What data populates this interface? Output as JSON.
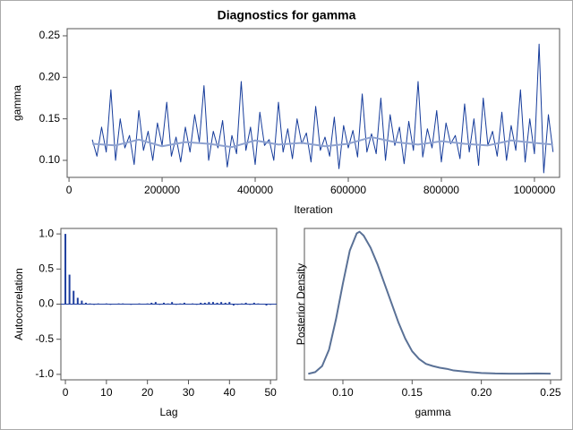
{
  "title": "Diagnostics for gamma",
  "chart_data": [
    {
      "type": "line",
      "xlabel": "Iteration",
      "ylabel": "gamma",
      "xlim": [
        -4000,
        1054000
      ],
      "ylim": [
        0.0795,
        0.2586
      ],
      "xticks": [
        0,
        200000,
        400000,
        600000,
        800000,
        1000000
      ],
      "yticks": [
        {
          "value": 0.1,
          "label": "0.10"
        },
        {
          "value": 0.15,
          "label": "0.15"
        },
        {
          "value": 0.2,
          "label": "0.20"
        },
        {
          "value": 0.25,
          "label": "0.25"
        }
      ],
      "series": [
        {
          "color": "#163c9b",
          "width": 1,
          "x": [
            50000,
            60000,
            70000,
            80000,
            90000,
            100000,
            110000,
            120000,
            130000,
            140000,
            150000,
            160000,
            170000,
            180000,
            190000,
            200000,
            210000,
            220000,
            230000,
            240000,
            250000,
            260000,
            270000,
            280000,
            290000,
            300000,
            310000,
            320000,
            330000,
            340000,
            350000,
            360000,
            370000,
            380000,
            390000,
            400000,
            410000,
            420000,
            430000,
            440000,
            450000,
            460000,
            470000,
            480000,
            490000,
            500000,
            510000,
            520000,
            530000,
            540000,
            550000,
            560000,
            570000,
            580000,
            590000,
            600000,
            610000,
            620000,
            630000,
            640000,
            650000,
            660000,
            670000,
            680000,
            690000,
            700000,
            710000,
            720000,
            730000,
            740000,
            750000,
            760000,
            770000,
            780000,
            790000,
            800000,
            810000,
            820000,
            830000,
            840000,
            850000,
            860000,
            870000,
            880000,
            890000,
            900000,
            910000,
            920000,
            930000,
            940000,
            950000,
            960000,
            970000,
            980000,
            990000,
            1000000,
            1010000,
            1020000,
            1030000,
            1040000
          ],
          "values": [
            0.125,
            0.105,
            0.14,
            0.11,
            0.185,
            0.1,
            0.15,
            0.115,
            0.13,
            0.095,
            0.16,
            0.112,
            0.135,
            0.1,
            0.145,
            0.118,
            0.17,
            0.105,
            0.128,
            0.098,
            0.14,
            0.11,
            0.155,
            0.122,
            0.19,
            0.1,
            0.135,
            0.115,
            0.148,
            0.092,
            0.13,
            0.108,
            0.195,
            0.112,
            0.14,
            0.095,
            0.158,
            0.118,
            0.125,
            0.1,
            0.17,
            0.11,
            0.138,
            0.102,
            0.15,
            0.12,
            0.133,
            0.098,
            0.165,
            0.112,
            0.128,
            0.105,
            0.152,
            0.09,
            0.142,
            0.115,
            0.136,
            0.104,
            0.18,
            0.11,
            0.132,
            0.108,
            0.175,
            0.1,
            0.155,
            0.118,
            0.14,
            0.096,
            0.147,
            0.112,
            0.195,
            0.104,
            0.138,
            0.115,
            0.16,
            0.098,
            0.145,
            0.12,
            0.13,
            0.102,
            0.168,
            0.11,
            0.15,
            0.094,
            0.175,
            0.118,
            0.135,
            0.105,
            0.158,
            0.1,
            0.142,
            0.112,
            0.185,
            0.098,
            0.15,
            0.108,
            0.24,
            0.085,
            0.155,
            0.11
          ]
        },
        {
          "color": "#8ea2d0",
          "width": 2,
          "x": [
            50000,
            100000,
            150000,
            200000,
            250000,
            300000,
            350000,
            400000,
            450000,
            500000,
            550000,
            600000,
            650000,
            700000,
            750000,
            800000,
            850000,
            900000,
            950000,
            1000000,
            1040000
          ],
          "values": [
            0.12,
            0.118,
            0.125,
            0.117,
            0.122,
            0.12,
            0.116,
            0.124,
            0.119,
            0.121,
            0.117,
            0.12,
            0.128,
            0.122,
            0.119,
            0.123,
            0.12,
            0.118,
            0.124,
            0.121,
            0.119
          ]
        }
      ]
    },
    {
      "type": "bar",
      "xlabel": "Lag",
      "ylabel": "Autocorrelation",
      "color": "#1f3f9f",
      "xlim": [
        -1.1,
        51.5
      ],
      "ylim": [
        -1.078,
        1.078
      ],
      "xticks": [
        0,
        10,
        20,
        30,
        40,
        50
      ],
      "yticks": [
        {
          "value": 1,
          "label": "1.0"
        },
        {
          "value": 0.5,
          "label": "0.5"
        },
        {
          "value": 0,
          "label": "0.0"
        },
        {
          "value": -0.5,
          "label": "-0.5"
        },
        {
          "value": -1,
          "label": "-1.0"
        }
      ],
      "x": [
        0,
        1,
        2,
        3,
        4,
        5,
        6,
        7,
        8,
        9,
        10,
        11,
        12,
        13,
        14,
        15,
        16,
        17,
        18,
        19,
        20,
        21,
        22,
        23,
        24,
        25,
        26,
        27,
        28,
        29,
        30,
        31,
        32,
        33,
        34,
        35,
        36,
        37,
        38,
        39,
        40,
        41,
        42,
        43,
        44,
        45,
        46,
        47,
        48,
        49,
        50
      ],
      "values": [
        1.0,
        0.42,
        0.19,
        0.09,
        0.05,
        0.02,
        0.01,
        -0.01,
        0.01,
        0.0,
        0.01,
        -0.01,
        0.0,
        0.01,
        0.01,
        0.0,
        -0.01,
        0.0,
        0.01,
        0.0,
        0.01,
        0.02,
        0.03,
        -0.01,
        0.02,
        0.01,
        0.03,
        -0.01,
        0.01,
        0.02,
        0.0,
        0.01,
        -0.01,
        0.02,
        0.02,
        0.03,
        0.03,
        0.02,
        0.03,
        0.02,
        0.03,
        -0.02,
        -0.01,
        0.01,
        0.02,
        -0.01,
        0.02,
        0.01,
        0.0,
        -0.02,
        -0.01
      ]
    },
    {
      "type": "line",
      "xlabel": "gamma",
      "ylabel": "Posterior Density",
      "xlim": [
        0.0722,
        0.2578
      ],
      "ylim": [
        -1,
        26.5
      ],
      "xticks": [
        {
          "value": 0.1,
          "label": "0.10"
        },
        {
          "value": 0.15,
          "label": "0.15"
        },
        {
          "value": 0.2,
          "label": "0.20"
        },
        {
          "value": 0.25,
          "label": "0.25"
        }
      ],
      "series": [
        {
          "color": "#5a7196",
          "width": 2,
          "x": [
            0.075,
            0.08,
            0.085,
            0.09,
            0.095,
            0.1,
            0.105,
            0.11,
            0.112,
            0.115,
            0.12,
            0.125,
            0.13,
            0.135,
            0.14,
            0.145,
            0.15,
            0.155,
            0.16,
            0.165,
            0.17,
            0.175,
            0.18,
            0.19,
            0.2,
            0.21,
            0.22,
            0.23,
            0.24,
            0.25
          ],
          "values": [
            0.1,
            0.4,
            1.5,
            4.5,
            10,
            16.5,
            22.5,
            25.6,
            25.9,
            25.2,
            23,
            20,
            16.5,
            13,
            9.5,
            6.5,
            4.2,
            2.8,
            1.9,
            1.5,
            1.2,
            1.0,
            0.7,
            0.45,
            0.25,
            0.15,
            0.12,
            0.12,
            0.15,
            0.12
          ]
        }
      ]
    }
  ]
}
